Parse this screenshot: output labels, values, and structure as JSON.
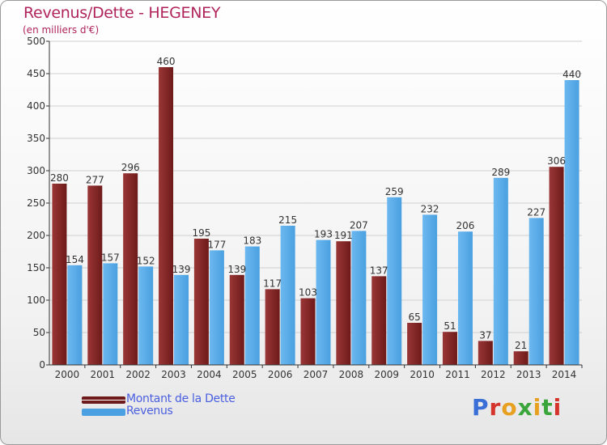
{
  "title": "Revenus/Dette - HEGENEY",
  "subtitle": "(en milliers d'€)",
  "logo": {
    "text": "Proxiti",
    "letter_colors": [
      "#3a6fd8",
      "#d4342c",
      "#e8a020",
      "#3aa53a",
      "#e8a020",
      "#3aa53a",
      "#d4342c"
    ]
  },
  "colors": {
    "dette": "#6e1a1a",
    "dette_light": "#9a3636",
    "revenus": "#4aa0e0",
    "revenus_light": "#6cb8f0",
    "axis": "#333333",
    "grid": "#cfcfcf",
    "title": "#b0245c",
    "legend_text": "#4a5ee0"
  },
  "chart_data": {
    "type": "bar",
    "title": "Revenus/Dette - HEGENEY",
    "subtitle": "(en milliers d'€)",
    "xlabel": "",
    "ylabel": "",
    "ylim": [
      0,
      500
    ],
    "yticks": [
      0,
      50,
      100,
      150,
      200,
      250,
      300,
      350,
      400,
      450,
      500
    ],
    "grid": true,
    "legend_position": "bottom-left",
    "categories": [
      "2000",
      "2001",
      "2002",
      "2003",
      "2004",
      "2005",
      "2006",
      "2007",
      "2008",
      "2009",
      "2010",
      "2011",
      "2012",
      "2013",
      "2014"
    ],
    "series": [
      {
        "name": "Montant de la Dette",
        "values": [
          280,
          277,
          296,
          460,
          195,
          139,
          117,
          103,
          191,
          137,
          65,
          51,
          37,
          21,
          306
        ],
        "labels": [
          "280",
          "277",
          "296",
          "460",
          "195",
          "139",
          "117",
          "103",
          "191",
          "137",
          "65",
          "51",
          "37",
          "21",
          "306"
        ]
      },
      {
        "name": "Revenus",
        "values": [
          154,
          157,
          152,
          139,
          177,
          183,
          215,
          193,
          207,
          259,
          232,
          206,
          289,
          227,
          440
        ],
        "labels": [
          "154",
          "157",
          "152",
          "139",
          "177",
          "183",
          "215",
          "193",
          "207",
          "259",
          "232",
          "206",
          "289",
          "227",
          "440"
        ]
      }
    ]
  }
}
